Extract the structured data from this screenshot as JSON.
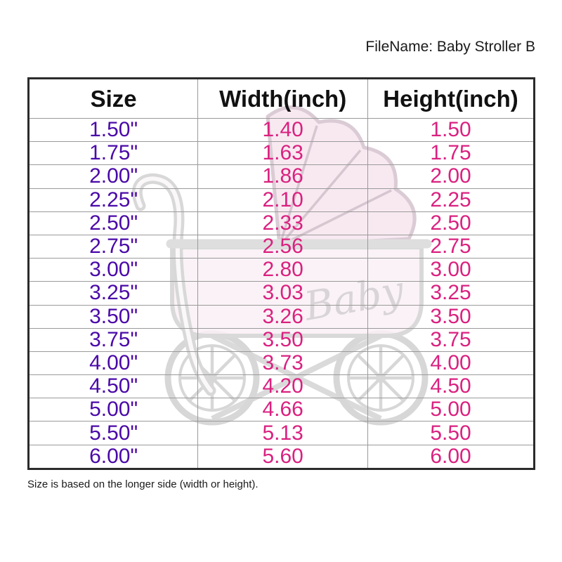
{
  "header": {
    "filename_label": "FileName: Baby Stroller B"
  },
  "chart_data": {
    "type": "table",
    "title": "Baby Stroller B size chart",
    "columns": [
      "Size",
      "Width(inch)",
      "Height(inch)"
    ],
    "rows": [
      [
        "1.50\"",
        "1.40",
        "1.50"
      ],
      [
        "1.75\"",
        "1.63",
        "1.75"
      ],
      [
        "2.00\"",
        "1.86",
        "2.00"
      ],
      [
        "2.25\"",
        "2.10",
        "2.25"
      ],
      [
        "2.50\"",
        "2.33",
        "2.50"
      ],
      [
        "2.75\"",
        "2.56",
        "2.75"
      ],
      [
        "3.00\"",
        "2.80",
        "3.00"
      ],
      [
        "3.25\"",
        "3.03",
        "3.25"
      ],
      [
        "3.50\"",
        "3.26",
        "3.50"
      ],
      [
        "3.75\"",
        "3.50",
        "3.75"
      ],
      [
        "4.00\"",
        "3.73",
        "4.00"
      ],
      [
        "4.50\"",
        "4.20",
        "4.50"
      ],
      [
        "5.00\"",
        "4.66",
        "5.00"
      ],
      [
        "5.50\"",
        "5.13",
        "5.50"
      ],
      [
        "6.00\"",
        "5.60",
        "6.00"
      ]
    ]
  },
  "footnote": "Size is based on the longer side (width or height).",
  "watermark": {
    "label": "Baby",
    "description": "baby-stroller-watermark"
  },
  "colors": {
    "size_text": "#4A09A8",
    "value_text": "#DA2180",
    "header_text": "#111111",
    "grid_line": "#9A9A9A",
    "outer_border": "#2B2B2B",
    "watermark_stroke": "#D8D8D8",
    "watermark_pink": "#F6E4ED"
  }
}
